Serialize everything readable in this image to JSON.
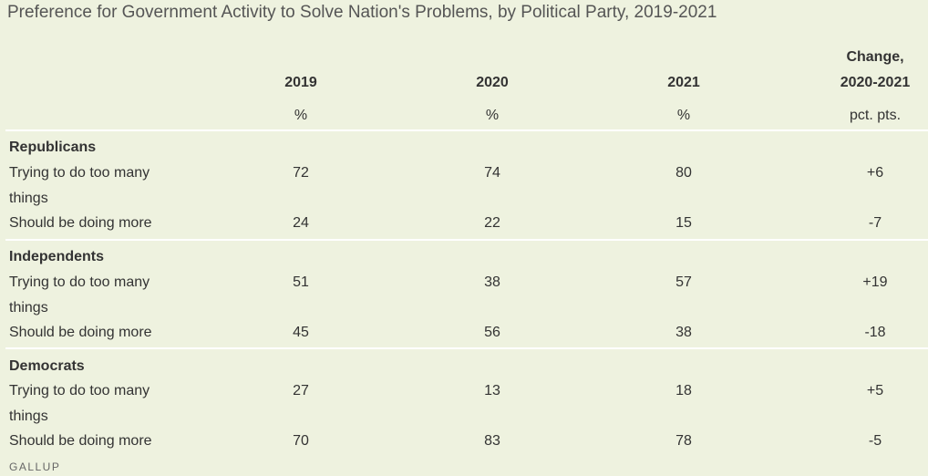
{
  "title": "Preference for Government Activity to Solve Nation's Problems, by Political Party, 2019-2021",
  "columns": [
    {
      "label": "2019",
      "unit": "%"
    },
    {
      "label": "2020",
      "unit": "%"
    },
    {
      "label": "2021",
      "unit": "%"
    },
    {
      "label_line1": "Change,",
      "label_line2": "2020-2021",
      "unit": "pct. pts."
    }
  ],
  "groups": [
    {
      "name": "Republicans",
      "rows": [
        {
          "label": "Trying to do too many things",
          "values": [
            "72",
            "74",
            "80",
            "+6"
          ]
        },
        {
          "label": "Should be doing more",
          "values": [
            "24",
            "22",
            "15",
            "-7"
          ]
        }
      ]
    },
    {
      "name": "Independents",
      "rows": [
        {
          "label": "Trying to do too many things",
          "values": [
            "51",
            "38",
            "57",
            "+19"
          ]
        },
        {
          "label": "Should be doing more",
          "values": [
            "45",
            "56",
            "38",
            "-18"
          ]
        }
      ]
    },
    {
      "name": "Democrats",
      "rows": [
        {
          "label": "Trying to do too many things",
          "values": [
            "27",
            "13",
            "18",
            "+5"
          ]
        },
        {
          "label": "Should be doing more",
          "values": [
            "70",
            "83",
            "78",
            "-5"
          ]
        }
      ]
    }
  ],
  "footer": "GALLUP",
  "chart_data": {
    "type": "table",
    "title": "Preference for Government Activity to Solve Nation's Problems, by Political Party, 2019-2021",
    "columns": [
      "2019",
      "2020",
      "2021",
      "Change, 2020-2021"
    ],
    "units": [
      "%",
      "%",
      "%",
      "pct. pts."
    ],
    "rows": [
      {
        "group": "Republicans",
        "label": "Trying to do too many things",
        "values": [
          72,
          74,
          80,
          6
        ]
      },
      {
        "group": "Republicans",
        "label": "Should be doing more",
        "values": [
          24,
          22,
          15,
          -7
        ]
      },
      {
        "group": "Independents",
        "label": "Trying to do too many things",
        "values": [
          51,
          38,
          57,
          19
        ]
      },
      {
        "group": "Independents",
        "label": "Should be doing more",
        "values": [
          45,
          56,
          38,
          -18
        ]
      },
      {
        "group": "Democrats",
        "label": "Trying to do too many things",
        "values": [
          27,
          13,
          18,
          5
        ]
      },
      {
        "group": "Democrats",
        "label": "Should be doing more",
        "values": [
          70,
          83,
          78,
          -5
        ]
      }
    ]
  }
}
